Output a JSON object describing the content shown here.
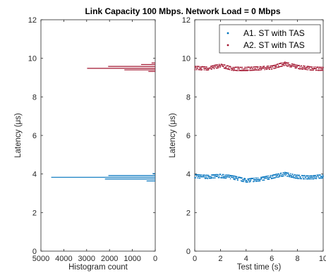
{
  "figure": {
    "title": "Link Capacity 100 Mbps.  Network Load = 0 Mbps"
  },
  "chart_data": [
    {
      "type": "bar",
      "orientation": "horizontal",
      "xlabel": "Histogram count",
      "ylabel": "Latency  (μs)",
      "xlim": [
        5000,
        0
      ],
      "x_reversed": true,
      "ylim": [
        0,
        12
      ],
      "xticks": [
        5000,
        4000,
        3000,
        2000,
        1000,
        0
      ],
      "yticks": [
        0,
        2,
        4,
        6,
        8,
        10,
        12
      ],
      "grid": false,
      "series": [
        {
          "color": "#0072BD",
          "bins": [
            {
              "latency": 3.64,
              "count": 380
            },
            {
              "latency": 3.74,
              "count": 2200
            },
            {
              "latency": 3.83,
              "count": 4550
            },
            {
              "latency": 3.92,
              "count": 2050
            },
            {
              "latency": 4.02,
              "count": 120
            }
          ]
        },
        {
          "color": "#A2142F",
          "bins": [
            {
              "latency": 9.32,
              "count": 300
            },
            {
              "latency": 9.4,
              "count": 1350
            },
            {
              "latency": 9.48,
              "count": 2980
            },
            {
              "latency": 9.58,
              "count": 2060
            },
            {
              "latency": 9.68,
              "count": 620
            },
            {
              "latency": 9.76,
              "count": 160
            }
          ]
        }
      ]
    },
    {
      "type": "scatter",
      "xlabel": "Test time (s)",
      "ylabel": "Latency  (μs)",
      "xlim": [
        0,
        10
      ],
      "ylim": [
        0,
        12
      ],
      "xticks": [
        0,
        2,
        4,
        6,
        8,
        10
      ],
      "yticks": [
        0,
        2,
        4,
        6,
        8,
        10,
        12
      ],
      "grid": false,
      "legend_location": "top-right",
      "series": [
        {
          "name": "A1. ST with TAS",
          "color": "#0072BD",
          "trend": [
            [
              0,
              3.88
            ],
            [
              1,
              3.85
            ],
            [
              2,
              3.9
            ],
            [
              3,
              3.82
            ],
            [
              4,
              3.66
            ],
            [
              5,
              3.72
            ],
            [
              6,
              3.85
            ],
            [
              7,
              4.0
            ],
            [
              8,
              3.85
            ],
            [
              9,
              3.82
            ],
            [
              10,
              3.88
            ]
          ]
        },
        {
          "name": "A2. ST with TAS",
          "color": "#A2142F",
          "trend": [
            [
              0,
              9.5
            ],
            [
              1,
              9.47
            ],
            [
              2,
              9.62
            ],
            [
              3,
              9.45
            ],
            [
              4,
              9.45
            ],
            [
              5,
              9.48
            ],
            [
              6,
              9.52
            ],
            [
              7,
              9.72
            ],
            [
              8,
              9.55
            ],
            [
              9,
              9.48
            ],
            [
              10,
              9.45
            ]
          ]
        }
      ]
    }
  ]
}
